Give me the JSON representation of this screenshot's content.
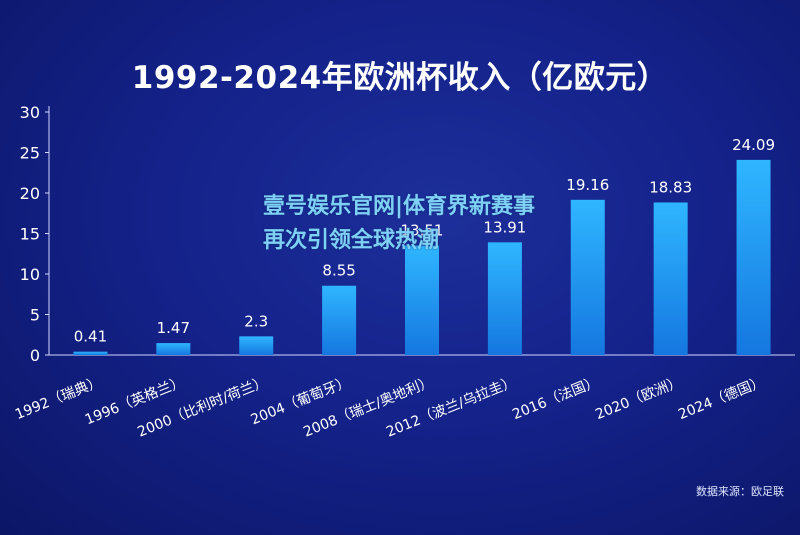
{
  "watermark": "壹号娱乐官网|体育界新赛事再次引领全球热潮",
  "source": "数据来源：欧足联",
  "chart_data": {
    "type": "bar",
    "title": "1992-2024年欧洲杯收入（亿欧元）",
    "categories": [
      "1992（瑞典）",
      "1996（英格兰）",
      "2000（比利时/荷兰）",
      "2004（葡萄牙）",
      "2008（瑞士/奥地利）",
      "2012（波兰/乌拉圭）",
      "2016（法国）",
      "2020（欧洲）",
      "2024（德国）"
    ],
    "values": [
      0.41,
      1.47,
      2.3,
      8.55,
      13.51,
      13.91,
      19.16,
      18.83,
      24.09
    ],
    "value_labels": [
      "0.41",
      "1.47",
      "2.3",
      "8.55",
      "13.51",
      "13.91",
      "19.16",
      "18.83",
      "24.09"
    ],
    "ylim": [
      0,
      30
    ],
    "yticks": [
      "0",
      "5",
      "10",
      "15",
      "20",
      "25",
      "30"
    ],
    "grid": false,
    "bar_color": "#1aa0f0"
  }
}
